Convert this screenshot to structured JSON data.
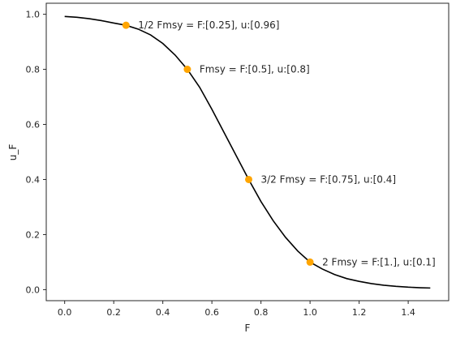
{
  "chart_data": {
    "type": "line",
    "title": "",
    "xlabel": "F",
    "ylabel": "u_F",
    "xlim": [
      -0.075,
      1.565
    ],
    "ylim": [
      -0.04,
      1.04
    ],
    "grid": false,
    "xticks": [
      0.0,
      0.2,
      0.4,
      0.6,
      0.8,
      1.0,
      1.2,
      1.4
    ],
    "xtick_labels": [
      "0.0",
      "0.2",
      "0.4",
      "0.6",
      "0.8",
      "1.0",
      "1.2",
      "1.4"
    ],
    "yticks": [
      0.0,
      0.2,
      0.4,
      0.6,
      0.8,
      1.0
    ],
    "ytick_labels": [
      "0.0",
      "0.2",
      "0.4",
      "0.6",
      "0.8",
      "1.0"
    ],
    "curve": {
      "color": "#000000",
      "x": [
        0.0,
        0.05,
        0.1,
        0.15,
        0.2,
        0.25,
        0.3,
        0.35,
        0.4,
        0.45,
        0.5,
        0.55,
        0.6,
        0.65,
        0.7,
        0.75,
        0.8,
        0.85,
        0.9,
        0.95,
        1.0,
        1.05,
        1.1,
        1.15,
        1.2,
        1.25,
        1.3,
        1.35,
        1.4,
        1.45,
        1.49
      ],
      "y": [
        0.992,
        0.989,
        0.984,
        0.977,
        0.968,
        0.96,
        0.946,
        0.925,
        0.894,
        0.852,
        0.8,
        0.735,
        0.655,
        0.57,
        0.485,
        0.4,
        0.32,
        0.25,
        0.19,
        0.14,
        0.1,
        0.075,
        0.055,
        0.04,
        0.03,
        0.022,
        0.016,
        0.012,
        0.009,
        0.007,
        0.006
      ]
    },
    "points": {
      "color": "#ffa500",
      "items": [
        {
          "x": 0.25,
          "y": 0.96,
          "label": "1/2 Fmsy = F:[0.25], u:[0.96]"
        },
        {
          "x": 0.5,
          "y": 0.8,
          "label": "Fmsy = F:[0.5], u:[0.8]"
        },
        {
          "x": 0.75,
          "y": 0.4,
          "label": "3/2 Fmsy = F:[0.75], u:[0.4]"
        },
        {
          "x": 1.0,
          "y": 0.1,
          "label": "2 Fmsy = F:[1.], u:[0.1]"
        }
      ]
    }
  }
}
